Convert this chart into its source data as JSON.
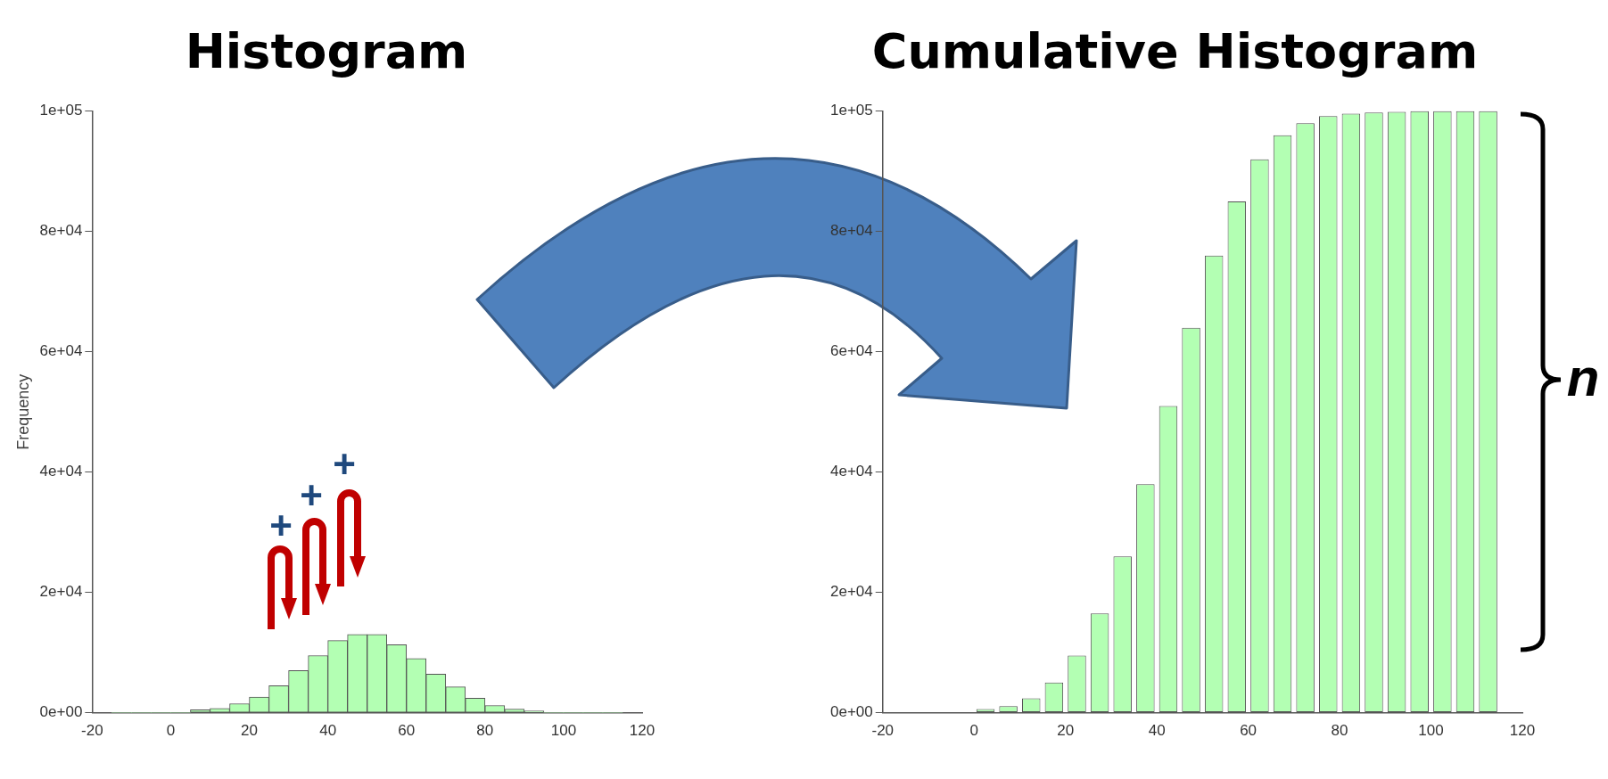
{
  "chart_data": [
    {
      "type": "histogram",
      "title": "Histogram",
      "ylabel": "Frequency",
      "color": "#b3ffb3",
      "bins": [
        -15,
        -10,
        -5,
        0,
        5,
        10,
        15,
        20,
        25,
        30,
        35,
        40,
        45,
        50,
        55,
        60,
        65,
        70,
        75,
        80,
        85,
        90,
        95,
        100,
        105,
        110,
        115
      ],
      "values": [
        0,
        0,
        0,
        0,
        500,
        700,
        1500,
        2600,
        4500,
        7000,
        9500,
        12000,
        13000,
        13000,
        11300,
        9000,
        6400,
        4300,
        2400,
        1200,
        600,
        300,
        0,
        0,
        0,
        0
      ],
      "xlim": [
        -20,
        120
      ],
      "xticks": [
        -20,
        0,
        20,
        40,
        60,
        80,
        100,
        120
      ],
      "ylim": [
        0,
        100000
      ],
      "yticks": [
        {
          "value": 0,
          "label": "0e+00"
        },
        {
          "value": 20000,
          "label": "2e+04"
        },
        {
          "value": 40000,
          "label": "4e+04"
        },
        {
          "value": 60000,
          "label": "6e+04"
        },
        {
          "value": 80000,
          "label": "8e+04"
        },
        {
          "value": 100000,
          "label": "1e+05"
        }
      ],
      "grid": false,
      "annotations": [
        "+",
        "+",
        "+"
      ]
    },
    {
      "type": "bar",
      "title": "Cumulative Histogram",
      "color": "#b3ffb3",
      "x": [
        -12.5,
        -7.5,
        -2.5,
        2.5,
        7.5,
        12.5,
        17.5,
        22.5,
        27.5,
        32.5,
        37.5,
        42.5,
        47.5,
        52.5,
        57.5,
        62.5,
        67.5,
        72.5,
        77.5,
        82.5,
        87.5,
        92.5,
        97.5,
        102.5,
        107.5,
        112.5
      ],
      "values": [
        0,
        0,
        0,
        600,
        1100,
        2400,
        5000,
        9500,
        16500,
        26000,
        38000,
        51000,
        64000,
        76000,
        85000,
        92000,
        96000,
        98000,
        99200,
        99600,
        99800,
        99900,
        100000,
        100000,
        100000,
        100000
      ],
      "xlim": [
        -20,
        120
      ],
      "xticks": [
        -20,
        0,
        20,
        40,
        60,
        80,
        100,
        120
      ],
      "ylim": [
        0,
        100000
      ],
      "yticks": [
        {
          "value": 0,
          "label": "0e+00"
        },
        {
          "value": 20000,
          "label": "2e+04"
        },
        {
          "value": 40000,
          "label": "4e+04"
        },
        {
          "value": 60000,
          "label": "6e+04"
        },
        {
          "value": 80000,
          "label": "8e+04"
        },
        {
          "value": 100000,
          "label": "1e+05"
        }
      ],
      "grid": false,
      "annotations": [
        "n"
      ]
    }
  ]
}
